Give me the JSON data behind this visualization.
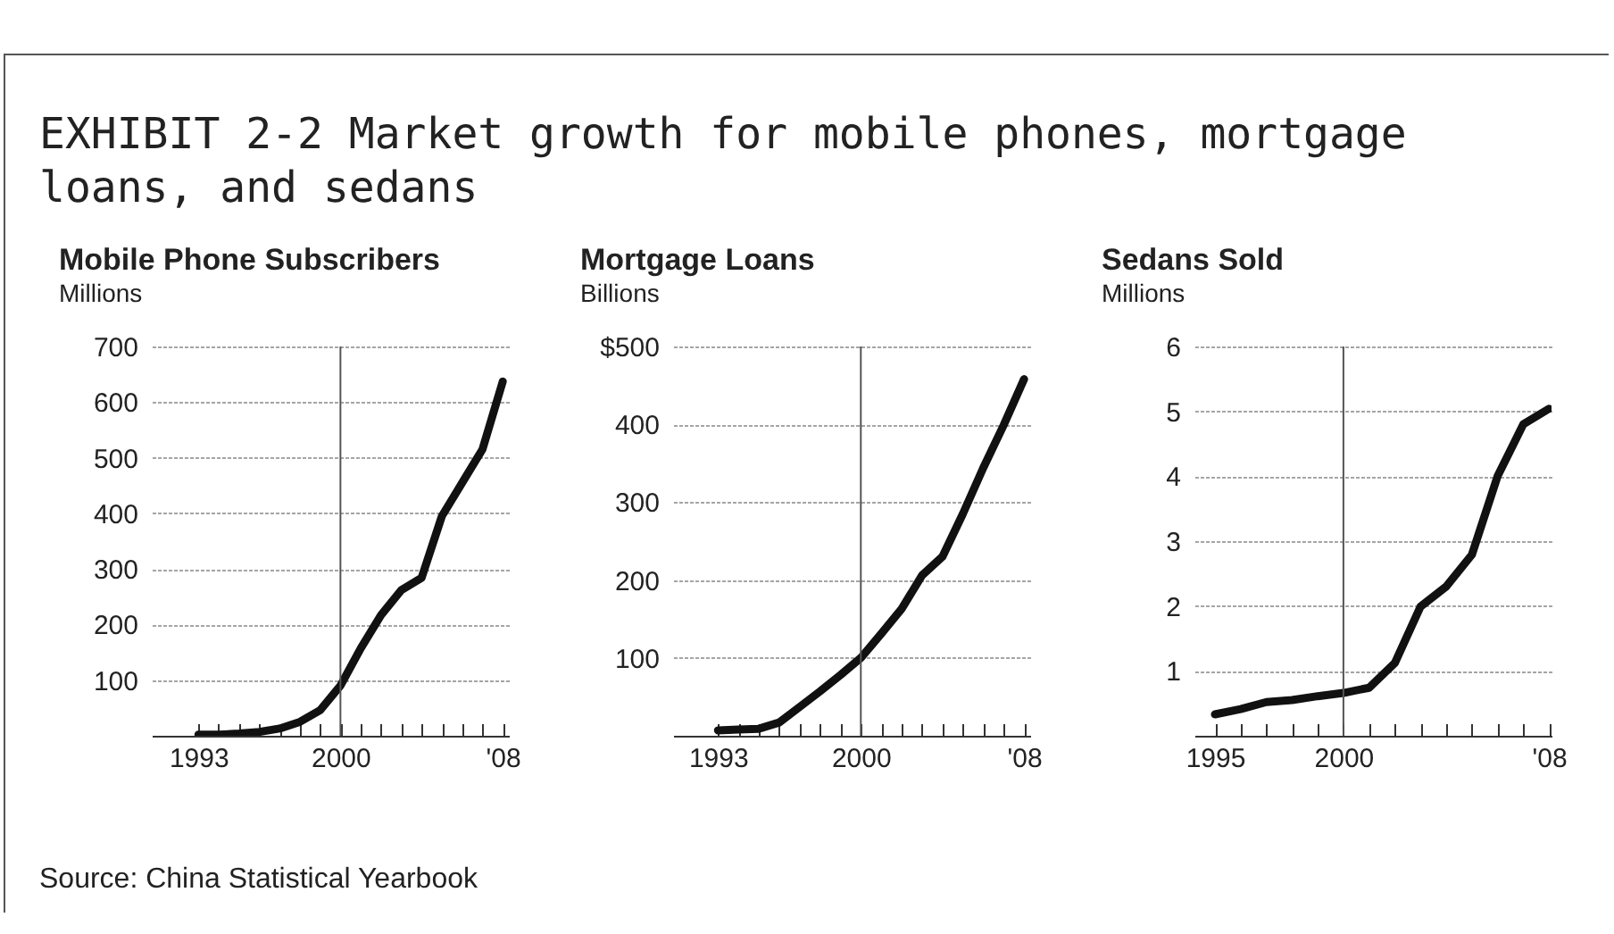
{
  "chart_data": [
    {
      "type": "line",
      "title": "Mobile Phone Subscribers",
      "ylabel": "Millions",
      "annotations": [
        "EXHIBIT 2-2 Market growth for mobile phones, mortgage loans, and sedans",
        "Source: China Statistical Yearbook"
      ],
      "x": [
        1993,
        1994,
        1995,
        1996,
        1997,
        1998,
        1999,
        2000,
        2001,
        2002,
        2003,
        2004,
        2005,
        2006,
        2007,
        2008
      ],
      "series": [
        {
          "color": "#111111",
          "values": [
            2,
            2,
            4,
            7,
            13,
            25,
            46,
            90,
            157,
            217,
            262,
            284,
            395,
            455,
            515,
            637
          ]
        }
      ],
      "xlim": [
        1990.7,
        2008.3
      ],
      "ylim": [
        0,
        700
      ],
      "xticks": [
        1993,
        {
          "value": 1994,
          "label": null
        },
        {
          "value": 1995,
          "label": null
        },
        {
          "value": 1996,
          "label": null
        },
        {
          "value": 1997,
          "label": null
        },
        {
          "value": 1998,
          "label": null
        },
        {
          "value": 1999,
          "label": null
        },
        2000,
        {
          "value": 2001,
          "label": null
        },
        {
          "value": 2002,
          "label": null
        },
        {
          "value": 2003,
          "label": null
        },
        {
          "value": 2004,
          "label": null
        },
        {
          "value": 2005,
          "label": null
        },
        {
          "value": 2006,
          "label": null
        },
        {
          "value": 2007,
          "label": null
        },
        {
          "value": 2008,
          "label": "'08"
        }
      ],
      "yticks": [
        100,
        200,
        300,
        400,
        500,
        600,
        700
      ],
      "grid": "y",
      "ref_lines": [
        {
          "axis": "x",
          "value": 2000
        }
      ],
      "line_style": "solid",
      "marker": "none",
      "legend": false
    },
    {
      "type": "line",
      "title": "Mortgage Loans",
      "ylabel": "Billions",
      "x": [
        1993,
        1994,
        1995,
        1996,
        1997,
        1998,
        1999,
        2000,
        2001,
        2002,
        2003,
        2004,
        2005,
        2006,
        2007,
        2008
      ],
      "series": [
        {
          "color": "#111111",
          "values": [
            7,
            8,
            9,
            17,
            37,
            57,
            78,
            100,
            131,
            163,
            206,
            230,
            285,
            344,
            399,
            458
          ]
        }
      ],
      "xlim": [
        1990.8,
        2008.3
      ],
      "ylim": [
        0,
        500
      ],
      "xticks": [
        1993,
        {
          "value": 1994,
          "label": null
        },
        {
          "value": 1995,
          "label": null
        },
        {
          "value": 1996,
          "label": null
        },
        {
          "value": 1997,
          "label": null
        },
        {
          "value": 1998,
          "label": null
        },
        {
          "value": 1999,
          "label": null
        },
        2000,
        {
          "value": 2001,
          "label": null
        },
        {
          "value": 2002,
          "label": null
        },
        {
          "value": 2003,
          "label": null
        },
        {
          "value": 2004,
          "label": null
        },
        {
          "value": 2005,
          "label": null
        },
        {
          "value": 2006,
          "label": null
        },
        {
          "value": 2007,
          "label": null
        },
        {
          "value": 2008,
          "label": "'08"
        }
      ],
      "yticks": [
        100,
        200,
        300,
        400,
        {
          "value": 500,
          "label": "$500"
        }
      ],
      "grid": "y",
      "ref_lines": [
        {
          "axis": "x",
          "value": 2000
        }
      ],
      "line_style": "solid",
      "marker": "none",
      "legend": false
    },
    {
      "type": "line",
      "title": "Sedans Sold",
      "ylabel": "Millions",
      "x": [
        1995,
        1996,
        1997,
        1998,
        1999,
        2000,
        2001,
        2002,
        2003,
        2004,
        2005,
        2006,
        2007,
        2008
      ],
      "series": [
        {
          "color": "#111111",
          "values": [
            0.33,
            0.41,
            0.52,
            0.55,
            0.61,
            0.66,
            0.74,
            1.12,
            1.99,
            2.3,
            2.79,
            4.0,
            4.8,
            5.04
          ]
        }
      ],
      "xlim": [
        1994.2,
        2008.1
      ],
      "ylim": [
        0,
        6
      ],
      "xticks": [
        1995,
        {
          "value": 1996,
          "label": null
        },
        {
          "value": 1997,
          "label": null
        },
        {
          "value": 1998,
          "label": null
        },
        {
          "value": 1999,
          "label": null
        },
        2000,
        {
          "value": 2001,
          "label": null
        },
        {
          "value": 2002,
          "label": null
        },
        {
          "value": 2003,
          "label": null
        },
        {
          "value": 2004,
          "label": null
        },
        {
          "value": 2005,
          "label": null
        },
        {
          "value": 2006,
          "label": null
        },
        {
          "value": 2007,
          "label": null
        },
        {
          "value": 2008,
          "label": "'08"
        }
      ],
      "yticks": [
        1,
        2,
        3,
        4,
        5,
        6
      ],
      "grid": "y",
      "ref_lines": [
        {
          "axis": "x",
          "value": 2000
        }
      ],
      "line_style": "solid",
      "marker": "none",
      "legend": false
    }
  ]
}
